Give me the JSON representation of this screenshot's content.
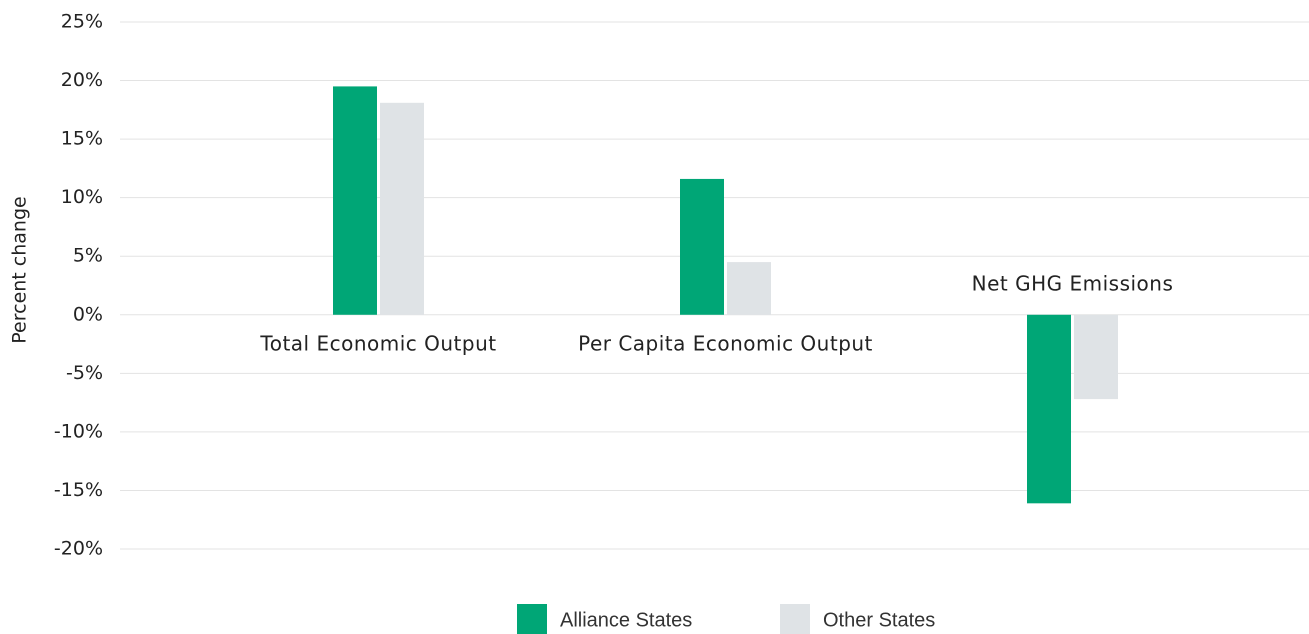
{
  "chart_data": {
    "type": "bar",
    "y_label": "Percent change",
    "categories": [
      "Total Economic Output",
      "Per Capita Economic Output",
      "Net GHG Emissions"
    ],
    "series": [
      {
        "name": "Alliance States",
        "color": "#00a676",
        "values": [
          19.5,
          11.6,
          -16.1
        ]
      },
      {
        "name": "Other States",
        "color": "#dfe3e6",
        "values": [
          18.1,
          4.5,
          -7.2
        ]
      }
    ],
    "ylim": [
      -20,
      25
    ],
    "yticks": [
      {
        "value": -20,
        "label": "-20%"
      },
      {
        "value": -15,
        "label": "-15%"
      },
      {
        "value": -10,
        "label": "-10%"
      },
      {
        "value": -5,
        "label": "-5%"
      },
      {
        "value": 0,
        "label": "0%"
      },
      {
        "value": 5,
        "label": "5%"
      },
      {
        "value": 10,
        "label": "10%"
      },
      {
        "value": 15,
        "label": "15%"
      },
      {
        "value": 20,
        "label": "20%"
      },
      {
        "value": 25,
        "label": "25%"
      }
    ],
    "grid": true,
    "legend": "bottom"
  }
}
